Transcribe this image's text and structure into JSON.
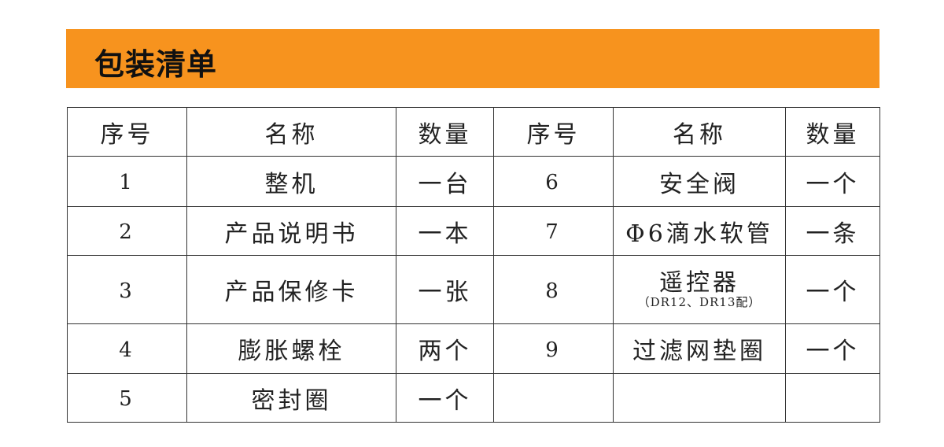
{
  "title": "包装清单",
  "colors": {
    "banner": "#F7931E"
  },
  "headers": [
    "序号",
    "名称",
    "数量",
    "序号",
    "名称",
    "数量"
  ],
  "rows": [
    {
      "l_no": "1",
      "l_name": "整机",
      "l_qty": "一台",
      "r_no": "6",
      "r_name": "安全阀",
      "r_qty": "一个"
    },
    {
      "l_no": "2",
      "l_name": "产品说明书",
      "l_qty": "一本",
      "r_no": "7",
      "r_name": "Φ6滴水软管",
      "r_qty": "一条"
    },
    {
      "l_no": "3",
      "l_name": "产品保修卡",
      "l_qty": "一张",
      "r_no": "8",
      "r_name": "遥控器",
      "r_note": "（DR12、DR13配）",
      "r_qty": "一个"
    },
    {
      "l_no": "4",
      "l_name": "膨胀螺栓",
      "l_qty": "两个",
      "r_no": "9",
      "r_name": "过滤网垫圈",
      "r_qty": "一个"
    },
    {
      "l_no": "5",
      "l_name": "密封圈",
      "l_qty": "一个",
      "r_no": "",
      "r_name": "",
      "r_qty": ""
    }
  ]
}
